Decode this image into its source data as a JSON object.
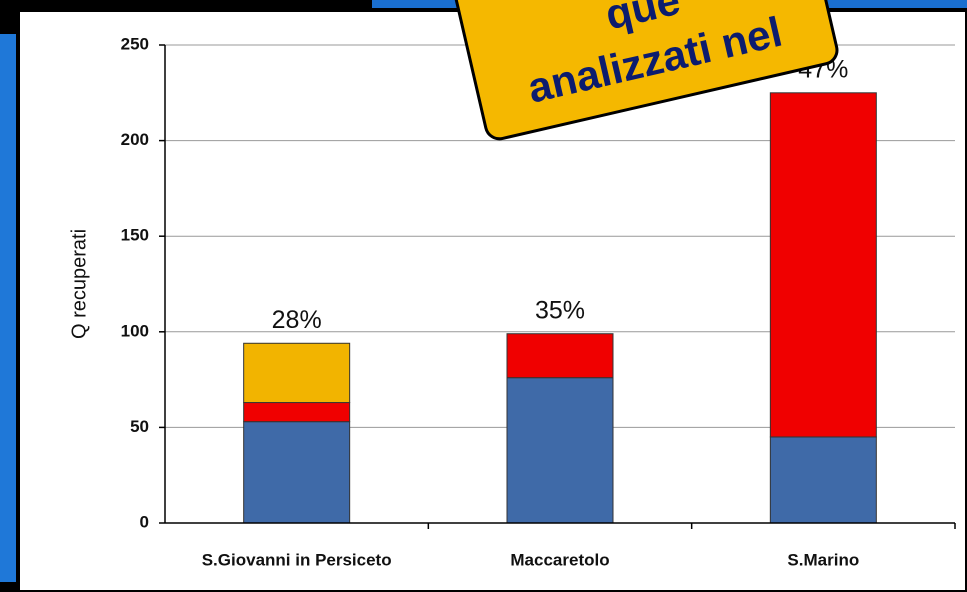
{
  "chart_data": {
    "type": "stacked_bar",
    "ylabel": "Q recuperati",
    "categories": [
      "S.Giovanni in Persiceto",
      "Maccaretolo",
      "S.Marino"
    ],
    "series": [
      {
        "color": "#3f6aa8",
        "values": [
          53,
          76,
          45
        ]
      },
      {
        "color": "#f00000",
        "values": [
          10,
          23,
          180
        ]
      },
      {
        "color": "#f2b400",
        "values": [
          31,
          0,
          0
        ]
      }
    ],
    "bar_labels": [
      "28%",
      "35%",
      "47%"
    ],
    "ylim": [
      0,
      250
    ],
    "yticks": [
      0,
      50,
      100,
      150,
      200,
      250
    ],
    "grid": true,
    "callout": [
      "que",
      "analizzati nel"
    ]
  }
}
